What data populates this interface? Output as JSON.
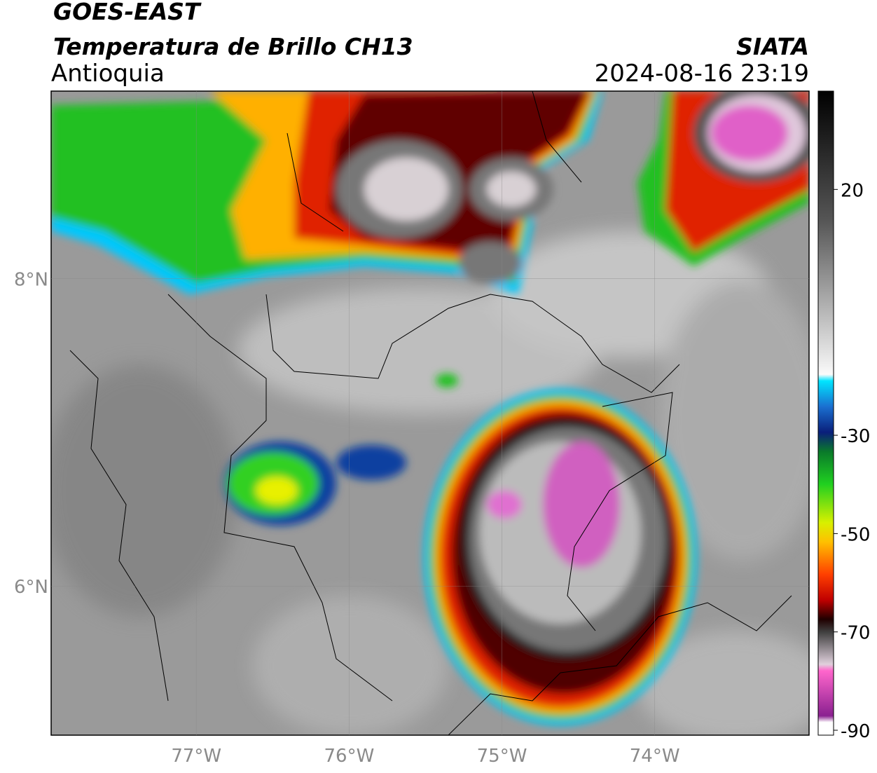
{
  "header": {
    "title": "GOES-EAST",
    "subtitle": "Temperatura de Brillo CH13",
    "region": "Antioquia",
    "source": "SIATA",
    "timestamp": "2024-08-16 23:19"
  },
  "map": {
    "xlim": [
      -77.95,
      -72.99
    ],
    "ylim": [
      5.03,
      9.22
    ],
    "xticks": [
      {
        "value": -77,
        "label": "77°W"
      },
      {
        "value": -76,
        "label": "76°W"
      },
      {
        "value": -75,
        "label": "75°W"
      },
      {
        "value": -74,
        "label": "74°W"
      }
    ],
    "yticks": [
      {
        "value": 8,
        "label": "8°N"
      },
      {
        "value": 6,
        "label": "6°N"
      }
    ],
    "grid": true
  },
  "colorbar": {
    "lim": [
      -91,
      40
    ],
    "ticks": [
      20,
      -30,
      -50,
      -70,
      -90
    ]
  }
}
